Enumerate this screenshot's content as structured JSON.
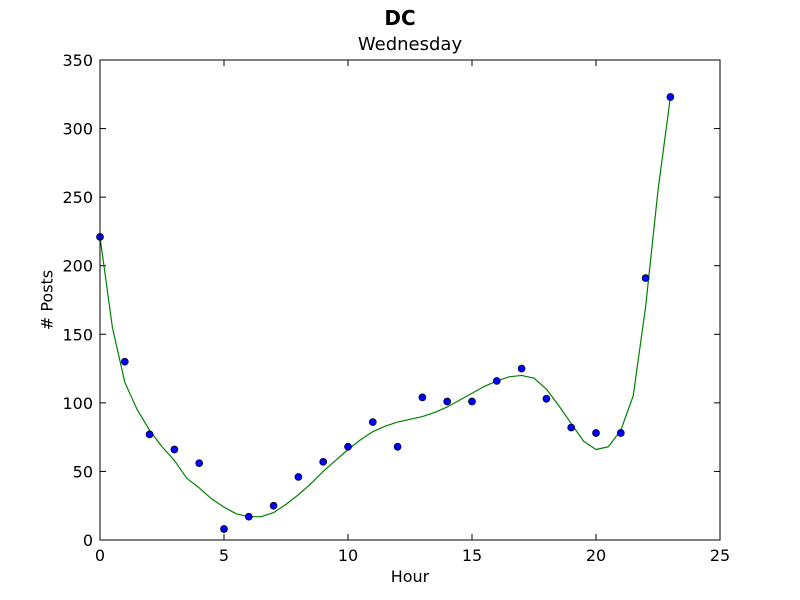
{
  "chart_data": {
    "type": "scatter",
    "title": "DC",
    "subtitle": "Wednesday",
    "xlabel": "Hour",
    "ylabel": "# Posts",
    "xlim": [
      0,
      25
    ],
    "ylim": [
      0,
      350
    ],
    "xticks": [
      0,
      5,
      10,
      15,
      20,
      25
    ],
    "yticks": [
      0,
      50,
      100,
      150,
      200,
      250,
      300,
      350
    ],
    "grid": false,
    "colors": {
      "points": "#0000ff",
      "point_edge": "#000000",
      "fit_line": "#008000",
      "axes": "#000000"
    },
    "series": [
      {
        "type": "scatter",
        "x": [
          0,
          1,
          2,
          3,
          4,
          5,
          6,
          7,
          8,
          9,
          10,
          11,
          12,
          13,
          14,
          15,
          16,
          17,
          18,
          19,
          20,
          21,
          22,
          23
        ],
        "y": [
          221,
          130,
          77,
          66,
          56,
          8,
          17,
          25,
          46,
          57,
          68,
          86,
          68,
          104,
          101,
          101,
          116,
          125,
          103,
          82,
          78,
          78,
          191,
          323
        ]
      },
      {
        "type": "line",
        "x": [
          0,
          0.5,
          1,
          1.5,
          2,
          2.5,
          3,
          3.5,
          4,
          4.5,
          5,
          5.5,
          6,
          6.5,
          7,
          7.5,
          8,
          8.5,
          9,
          9.5,
          10,
          10.5,
          11,
          11.5,
          12,
          12.5,
          13,
          13.5,
          14,
          14.5,
          15,
          15.5,
          16,
          16.5,
          17,
          17.5,
          18,
          18.5,
          19,
          19.5,
          20,
          20.5,
          21,
          21.5,
          22,
          22.5,
          23
        ],
        "y": [
          221,
          155,
          115,
          95,
          80,
          68,
          58,
          45,
          38,
          30,
          24,
          19,
          17,
          17,
          20,
          26,
          33,
          41,
          50,
          58,
          66,
          73,
          79,
          83,
          86,
          88,
          90,
          93,
          97,
          102,
          107,
          112,
          116,
          119,
          120,
          118,
          110,
          98,
          85,
          72,
          66,
          68,
          80,
          105,
          170,
          255,
          323
        ]
      }
    ]
  }
}
